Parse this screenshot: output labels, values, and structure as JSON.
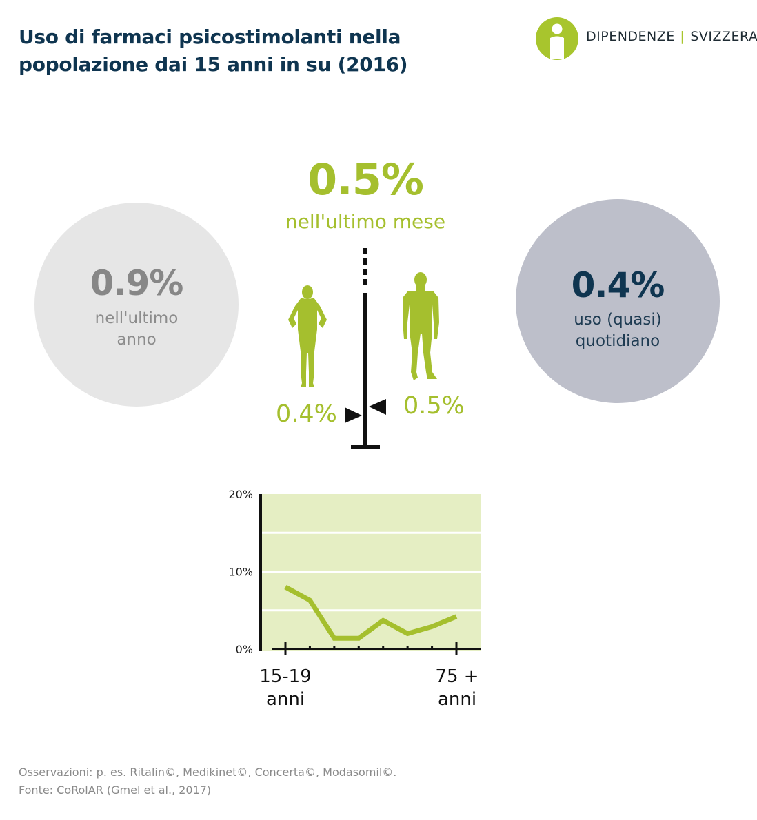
{
  "header": {
    "title_line1": "Uso di farmaci psicostimolanti nella",
    "title_line2": "popolazione dai 15 anni in su (2016)"
  },
  "brand": {
    "name_left": "DIPENDENZE",
    "separator": "|",
    "name_right": "SVIZZERA",
    "logo_color": "#a8c52d"
  },
  "stats": {
    "last_year": {
      "value": "0.9%",
      "label_line1": "nell'ultimo",
      "label_line2": "anno"
    },
    "last_month": {
      "value": "0.5%",
      "label": "nell'ultimo mese"
    },
    "daily": {
      "value": "0.4%",
      "label_line1": "uso (quasi)",
      "label_line2": "quotidiano"
    },
    "female": {
      "value": "0.4%",
      "icon": "woman-silhouette-icon"
    },
    "male": {
      "value": "0.5%",
      "icon": "man-silhouette-icon"
    }
  },
  "colors": {
    "accent_green": "#a5bf2e",
    "title_navy": "#0f3550",
    "plot_background": "#e5eec3",
    "circle_year": "#e6e6e6",
    "circle_daily": "#bdbfca"
  },
  "chart_data": {
    "type": "line",
    "ylim": [
      0,
      20
    ],
    "y_ticks": [
      "20%",
      "10%",
      "0%"
    ],
    "y_tick_values": [
      20,
      10,
      0
    ],
    "x_first_label": "15-19\nanni",
    "x_last_label": "75 +\nanni",
    "x_count": 8,
    "values": [
      8.0,
      6.3,
      1.4,
      1.4,
      3.7,
      2.0,
      2.9,
      4.2
    ],
    "grid": true,
    "legend": "none"
  },
  "footer": {
    "note": "Osservazioni: p. es. Ritalin©, Medikinet©, Concerta©, Modasomil©.",
    "source": "Fonte: CoRolAR (Gmel et al., 2017)"
  }
}
